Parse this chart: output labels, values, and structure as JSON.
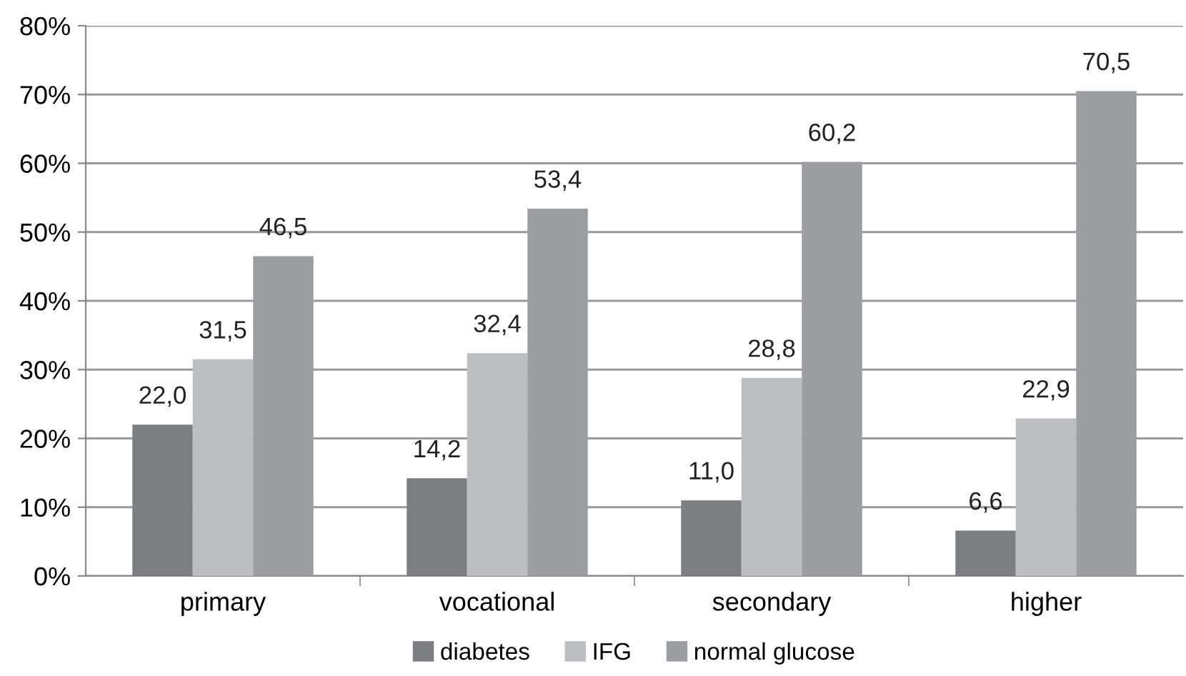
{
  "chart_data": {
    "type": "bar",
    "categories": [
      "primary",
      "vocational",
      "secondary",
      "higher"
    ],
    "series": [
      {
        "name": "diabetes",
        "color": "#7d7e82",
        "values": [
          22.0,
          14.2,
          11.0,
          6.6
        ],
        "value_labels": [
          "22,0",
          "14,2",
          "11,0",
          "6,6"
        ]
      },
      {
        "name": "IFG",
        "color": "#bdbec1",
        "values": [
          31.5,
          32.4,
          28.8,
          22.9
        ],
        "value_labels": [
          "31,5",
          "32,4",
          "28,8",
          "22,9"
        ]
      },
      {
        "name": "normal glucose",
        "color": "#9d9ea1",
        "values": [
          46.5,
          53.4,
          60.2,
          70.5
        ],
        "value_labels": [
          "46,5",
          "53,4",
          "60,2",
          "70,5"
        ]
      }
    ],
    "ylim": [
      0,
      80
    ],
    "yticks": [
      {
        "value": 0,
        "label": "0%"
      },
      {
        "value": 10,
        "label": "10%"
      },
      {
        "value": 20,
        "label": "20%"
      },
      {
        "value": 30,
        "label": "30%"
      },
      {
        "value": 40,
        "label": "40%"
      },
      {
        "value": 50,
        "label": "50%"
      },
      {
        "value": 60,
        "label": "60%"
      },
      {
        "value": 70,
        "label": "70%"
      },
      {
        "value": 80,
        "label": "80%"
      }
    ],
    "grid": "y",
    "legend": "bottom"
  }
}
